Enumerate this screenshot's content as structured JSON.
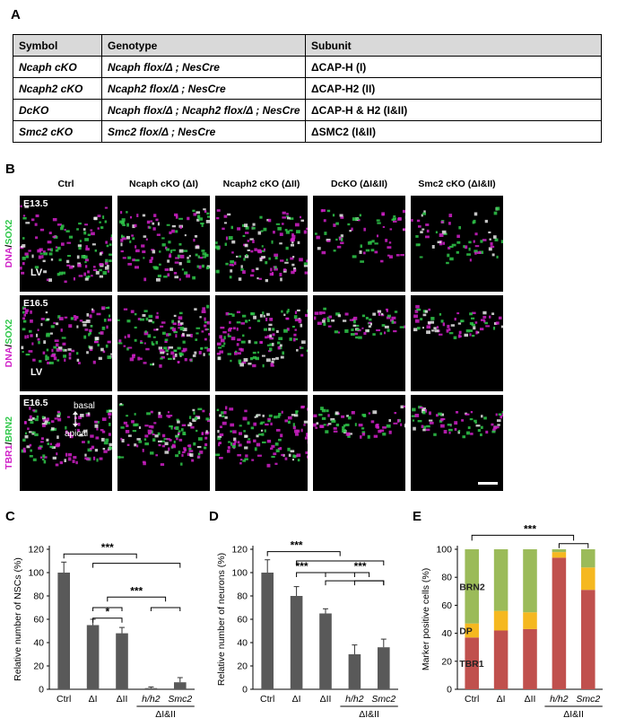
{
  "panels": {
    "a": "A",
    "b": "B",
    "c": "C",
    "d": "D",
    "e": "E"
  },
  "table": {
    "headers": [
      "Symbol",
      "Genotype",
      "Subunit"
    ],
    "rows": [
      {
        "symbol": "Ncaph cKO",
        "genotype": "Ncaph flox/Δ ; NesCre",
        "subunit": "ΔCAP-H (I)"
      },
      {
        "symbol": "Ncaph2 cKO",
        "genotype": "Ncaph2 flox/Δ ; NesCre",
        "subunit": "ΔCAP-H2 (II)"
      },
      {
        "symbol": "DcKO",
        "genotype": "Ncaph flox/Δ ; Ncaph2 flox/Δ ; NesCre",
        "subunit": "ΔCAP-H & H2 (I&II)"
      },
      {
        "symbol": "Smc2 cKO",
        "genotype": "Smc2 flox/Δ ; NesCre",
        "subunit": "ΔSMC2 (I&II)"
      }
    ]
  },
  "micro": {
    "columns": [
      "Ctrl",
      "Ncaph cKO (ΔI)",
      "Ncaph2 cKO (ΔII)",
      "DcKO (ΔI&II)",
      "Smc2 cKO (ΔI&II)"
    ],
    "rows": [
      {
        "stage": "E13.5",
        "label_a": "DNA",
        "label_b": "SOX2",
        "inset": "LV"
      },
      {
        "stage": "E16.5",
        "label_a": "DNA",
        "label_b": "SOX2",
        "inset": "LV"
      },
      {
        "stage": "E16.5",
        "label_a": "TBR1",
        "label_b": "BRN2",
        "inset": ""
      }
    ],
    "orientation": {
      "top": "basal",
      "bottom": "apical"
    },
    "colors": {
      "magenta": "#d020c8",
      "green": "#2fc84a",
      "white": "#e8e8e8"
    }
  },
  "chart_data": [
    {
      "type": "bar",
      "ylabel": "Relative number of NSCs (%)",
      "ylim": [
        0,
        120
      ],
      "yticks": [
        0,
        20,
        40,
        60,
        80,
        100,
        120
      ],
      "categories": [
        "Ctrl",
        "ΔI",
        "ΔII",
        "h/h2",
        "Smc2"
      ],
      "values": [
        100,
        55,
        48,
        1,
        6
      ],
      "errors": [
        9,
        5,
        5,
        1,
        4
      ],
      "group_label": "ΔI&II",
      "significance": [
        "***",
        "*",
        "***"
      ],
      "color": "#595959"
    },
    {
      "type": "bar",
      "ylabel": "Relative number of neurons (%)",
      "ylim": [
        0,
        120
      ],
      "yticks": [
        0,
        20,
        40,
        60,
        80,
        100,
        120
      ],
      "categories": [
        "Ctrl",
        "ΔI",
        "ΔII",
        "h/h2",
        "Smc2"
      ],
      "values": [
        100,
        80,
        65,
        30,
        36
      ],
      "errors": [
        11,
        8,
        4,
        8,
        7
      ],
      "group_label": "ΔI&II",
      "significance": [
        "***",
        "***",
        "***"
      ],
      "color": "#595959"
    },
    {
      "type": "bar",
      "ylabel": "Marker positive cells (%)",
      "ylim": [
        0,
        100
      ],
      "yticks": [
        0,
        20,
        40,
        60,
        80,
        100
      ],
      "categories": [
        "Ctrl",
        "ΔI",
        "ΔII",
        "h/h2",
        "Smc2"
      ],
      "group_label": "ΔI&II",
      "significance": [
        "***"
      ],
      "series": [
        {
          "name": "TBR1",
          "values": [
            37,
            42,
            43,
            94,
            71
          ],
          "color": "#c0504d"
        },
        {
          "name": "DP",
          "values": [
            10,
            14,
            12,
            4,
            16
          ],
          "color": "#f5b820"
        },
        {
          "name": "BRN2",
          "values": [
            53,
            44,
            45,
            2,
            13
          ],
          "color": "#9bbb59"
        }
      ]
    }
  ]
}
